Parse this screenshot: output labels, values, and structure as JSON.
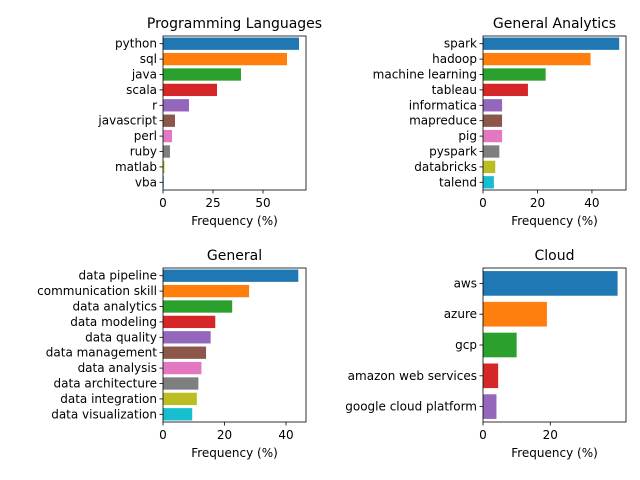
{
  "chart_data": [
    {
      "type": "bar",
      "orientation": "horizontal",
      "title": "Programming Languages",
      "xlabel": "Frequency (%)",
      "ylabel": "",
      "xlim": [
        0,
        71.5
      ],
      "xticks": [
        0,
        25,
        50
      ],
      "categories": [
        "python",
        "sql",
        "java",
        "scala",
        "r",
        "javascript",
        "perl",
        "ruby",
        "matlab",
        "vba"
      ],
      "values": [
        68,
        62,
        39,
        27,
        13,
        6,
        4.5,
        3.5,
        0.7,
        0.4
      ],
      "colors": [
        "#1f77b4",
        "#ff7f0e",
        "#2ca02c",
        "#d62728",
        "#9467bd",
        "#8c564b",
        "#e377c2",
        "#7f7f7f",
        "#bcbd22",
        "#17becf"
      ],
      "grid": false
    },
    {
      "type": "bar",
      "orientation": "horizontal",
      "title": "General Analytics",
      "xlabel": "Frequency (%)",
      "ylabel": "",
      "xlim": [
        0,
        52.5
      ],
      "xticks": [
        0,
        20,
        40
      ],
      "categories": [
        "spark",
        "hadoop",
        "machine learning",
        "tableau",
        "informatica",
        "mapreduce",
        "pig",
        "pyspark",
        "databricks",
        "talend"
      ],
      "values": [
        50,
        39.5,
        23,
        16.5,
        7,
        7,
        7,
        6,
        4.5,
        4
      ],
      "colors": [
        "#1f77b4",
        "#ff7f0e",
        "#2ca02c",
        "#d62728",
        "#9467bd",
        "#8c564b",
        "#e377c2",
        "#7f7f7f",
        "#bcbd22",
        "#17becf"
      ],
      "grid": false
    },
    {
      "type": "bar",
      "orientation": "horizontal",
      "title": "General",
      "xlabel": "Frequency (%)",
      "ylabel": "",
      "xlim": [
        0,
        46.5
      ],
      "xticks": [
        0,
        20,
        40
      ],
      "categories": [
        "data pipeline",
        "communication skill",
        "data analytics",
        "data modeling",
        "data quality",
        "data management",
        "data analysis",
        "data architecture",
        "data integration",
        "data visualization"
      ],
      "values": [
        44,
        28,
        22.5,
        17,
        15.5,
        14,
        12.5,
        11.5,
        11,
        9.5
      ],
      "colors": [
        "#1f77b4",
        "#ff7f0e",
        "#2ca02c",
        "#d62728",
        "#9467bd",
        "#8c564b",
        "#e377c2",
        "#7f7f7f",
        "#bcbd22",
        "#17becf"
      ],
      "grid": false
    },
    {
      "type": "bar",
      "orientation": "horizontal",
      "title": "Cloud",
      "xlabel": "Frequency (%)",
      "ylabel": "",
      "xlim": [
        0,
        42.5
      ],
      "xticks": [
        0,
        20
      ],
      "categories": [
        "aws",
        "azure",
        "gcp",
        "amazon web services",
        "google cloud platform"
      ],
      "values": [
        40,
        19,
        10,
        4.5,
        4
      ],
      "colors": [
        "#1f77b4",
        "#ff7f0e",
        "#2ca02c",
        "#d62728",
        "#9467bd"
      ],
      "grid": false
    }
  ]
}
